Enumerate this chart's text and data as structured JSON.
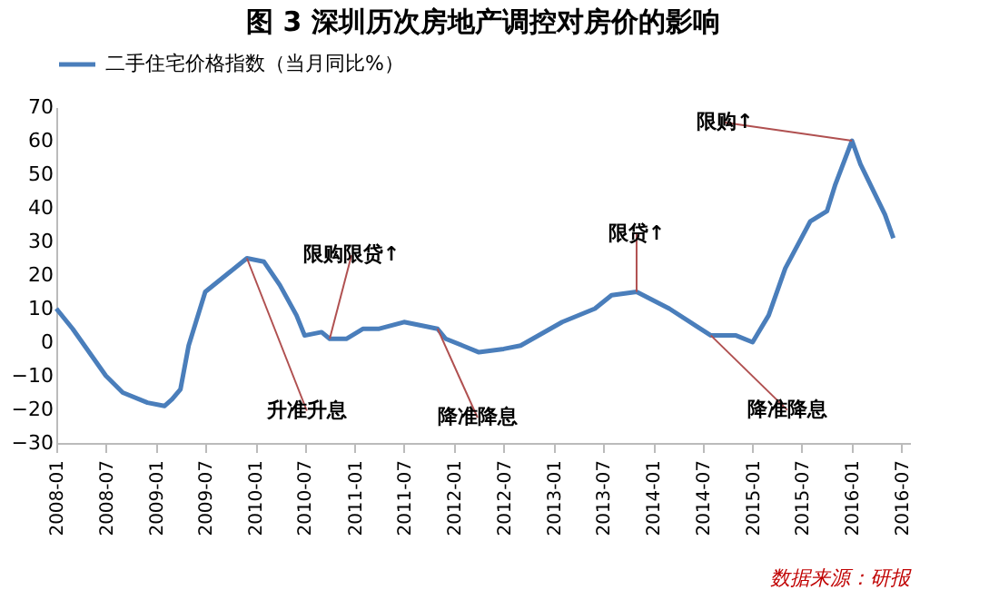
{
  "chart_data": {
    "type": "line",
    "title": "图 3  深圳历次房地产调控对房价的影响",
    "x": [
      "2008-01",
      "2008-03",
      "2008-07",
      "2008-09",
      "2008-12",
      "2009-02",
      "2009-03",
      "2009-04",
      "2009-05",
      "2009-07",
      "2009-10",
      "2009-12",
      "2010-02",
      "2010-04",
      "2010-06",
      "2010-07",
      "2010-09",
      "2010-10",
      "2010-12",
      "2011-02",
      "2011-04",
      "2011-07",
      "2011-09",
      "2011-11",
      "2011-12",
      "2012-02",
      "2012-04",
      "2012-07",
      "2012-09",
      "2013-02",
      "2013-06",
      "2013-08",
      "2013-11",
      "2014-03",
      "2014-08",
      "2014-11",
      "2015-01",
      "2015-03",
      "2015-05",
      "2015-08",
      "2015-10",
      "2015-11",
      "2016-01",
      "2016-02",
      "2016-05",
      "2016-06"
    ],
    "series": [
      {
        "name": "二手住宅价格指数（当月同比%）",
        "color": "#4a7ebb",
        "values": [
          10,
          4,
          -10,
          -15,
          -18,
          -19,
          -17,
          -14,
          -1,
          15,
          21,
          25,
          24,
          17,
          8,
          2,
          3,
          1,
          1,
          4,
          4,
          6,
          5,
          4,
          1,
          -1,
          -3,
          -2,
          -1,
          6,
          10,
          14,
          15,
          10,
          2,
          2,
          0,
          8,
          22,
          36,
          39,
          47,
          60,
          53,
          38,
          31
        ]
      }
    ],
    "xlim": [
      "2008-01",
      "2016-08"
    ],
    "xticks": [
      "2008-01",
      "2008-07",
      "2009-01",
      "2009-07",
      "2010-01",
      "2010-07",
      "2011-01",
      "2011-07",
      "2012-01",
      "2012-07",
      "2013-01",
      "2013-07",
      "2014-01",
      "2014-07",
      "2015-01",
      "2015-07",
      "2016-01",
      "2016-07"
    ],
    "ylim": [
      -30,
      70
    ],
    "yticks": [
      -30,
      -20,
      -10,
      0,
      10,
      20,
      30,
      40,
      50,
      60,
      70
    ],
    "grid": false,
    "legend": "top",
    "line_style": "solid",
    "marker": "none",
    "annotations": [
      {
        "text": "升准升息",
        "x": "2009-12",
        "y": 25
      },
      {
        "text": "限购限贷↑",
        "x": "2010-10",
        "y": 1
      },
      {
        "text": "降准降息",
        "x": "2011-11",
        "y": 4
      },
      {
        "text": "限贷↑",
        "x": "2013-11",
        "y": 15
      },
      {
        "text": "降准降息",
        "x": "2014-08",
        "y": 2
      },
      {
        "text": "限购↑",
        "x": "2016-01",
        "y": 60
      },
      "数据来源：研报"
    ]
  }
}
